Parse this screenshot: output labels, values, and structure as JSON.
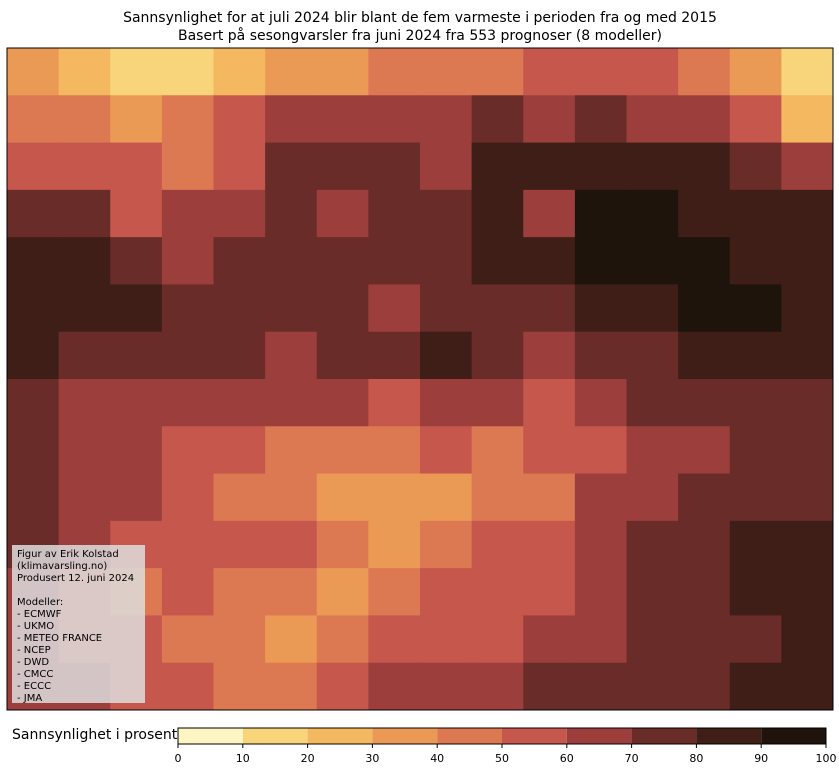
{
  "chart_data": {
    "type": "heatmap",
    "title": "Sannsynlighet for at juli 2024 blir blant de fem varmeste i perioden fra og med 2015",
    "subtitle": "Basert på sesongvarsler fra juni 2024 fra 553 prognoser (8 modeller)",
    "colorbar": {
      "label": "Sannsynlighet i prosent",
      "ticks": [
        0,
        10,
        20,
        30,
        40,
        50,
        60,
        70,
        80,
        90,
        100
      ],
      "colors": [
        "#fef6c2",
        "#f8d57a",
        "#f3b860",
        "#eb9a56",
        "#dc7852",
        "#c6574c",
        "#9c3f3c",
        "#6a2c28",
        "#3e1e17",
        "#1e140c"
      ]
    },
    "grid": [
      [
        35,
        25,
        15,
        15,
        20,
        30,
        35,
        45,
        40,
        45,
        50,
        55,
        50,
        40,
        30,
        10
      ],
      [
        45,
        40,
        35,
        45,
        55,
        60,
        65,
        65,
        65,
        70,
        65,
        70,
        65,
        60,
        50,
        20
      ],
      [
        50,
        55,
        50,
        45,
        50,
        70,
        70,
        75,
        60,
        85,
        85,
        80,
        85,
        80,
        70,
        60
      ],
      [
        75,
        70,
        55,
        60,
        60,
        70,
        65,
        75,
        75,
        85,
        60,
        90,
        90,
        80,
        80,
        80
      ],
      [
        85,
        85,
        75,
        65,
        75,
        75,
        70,
        70,
        75,
        80,
        85,
        90,
        90,
        90,
        85,
        85
      ],
      [
        85,
        85,
        80,
        70,
        70,
        75,
        75,
        65,
        70,
        75,
        75,
        80,
        85,
        90,
        90,
        85
      ],
      [
        80,
        75,
        75,
        70,
        70,
        65,
        70,
        75,
        80,
        75,
        65,
        70,
        75,
        80,
        80,
        80
      ],
      [
        75,
        65,
        60,
        65,
        65,
        60,
        65,
        55,
        60,
        60,
        55,
        60,
        70,
        70,
        75,
        75
      ],
      [
        70,
        60,
        65,
        55,
        50,
        45,
        40,
        45,
        50,
        45,
        50,
        55,
        60,
        65,
        70,
        70
      ],
      [
        70,
        65,
        60,
        55,
        45,
        40,
        35,
        30,
        35,
        40,
        45,
        60,
        65,
        70,
        75,
        75
      ],
      [
        70,
        60,
        55,
        50,
        55,
        50,
        45,
        35,
        40,
        50,
        55,
        60,
        70,
        75,
        80,
        80
      ],
      [
        65,
        55,
        45,
        50,
        45,
        40,
        35,
        40,
        50,
        55,
        55,
        65,
        70,
        75,
        80,
        80
      ],
      [
        60,
        55,
        50,
        45,
        40,
        35,
        45,
        50,
        55,
        50,
        60,
        65,
        70,
        70,
        75,
        80
      ],
      [
        65,
        60,
        55,
        50,
        45,
        45,
        55,
        60,
        60,
        65,
        70,
        70,
        75,
        75,
        80,
        80
      ]
    ],
    "annotation": {
      "lines": [
        "Figur av Erik Kolstad",
        "(klimavarsling.no)",
        "Produsert 12. juni 2024"
      ],
      "models_heading": "Modeller:",
      "models": [
        "- ECMWF",
        "- UKMO",
        "- METEO FRANCE",
        "- NCEP",
        "- DWD",
        "- CMCC",
        "- ECCC",
        "- JMA"
      ]
    }
  }
}
